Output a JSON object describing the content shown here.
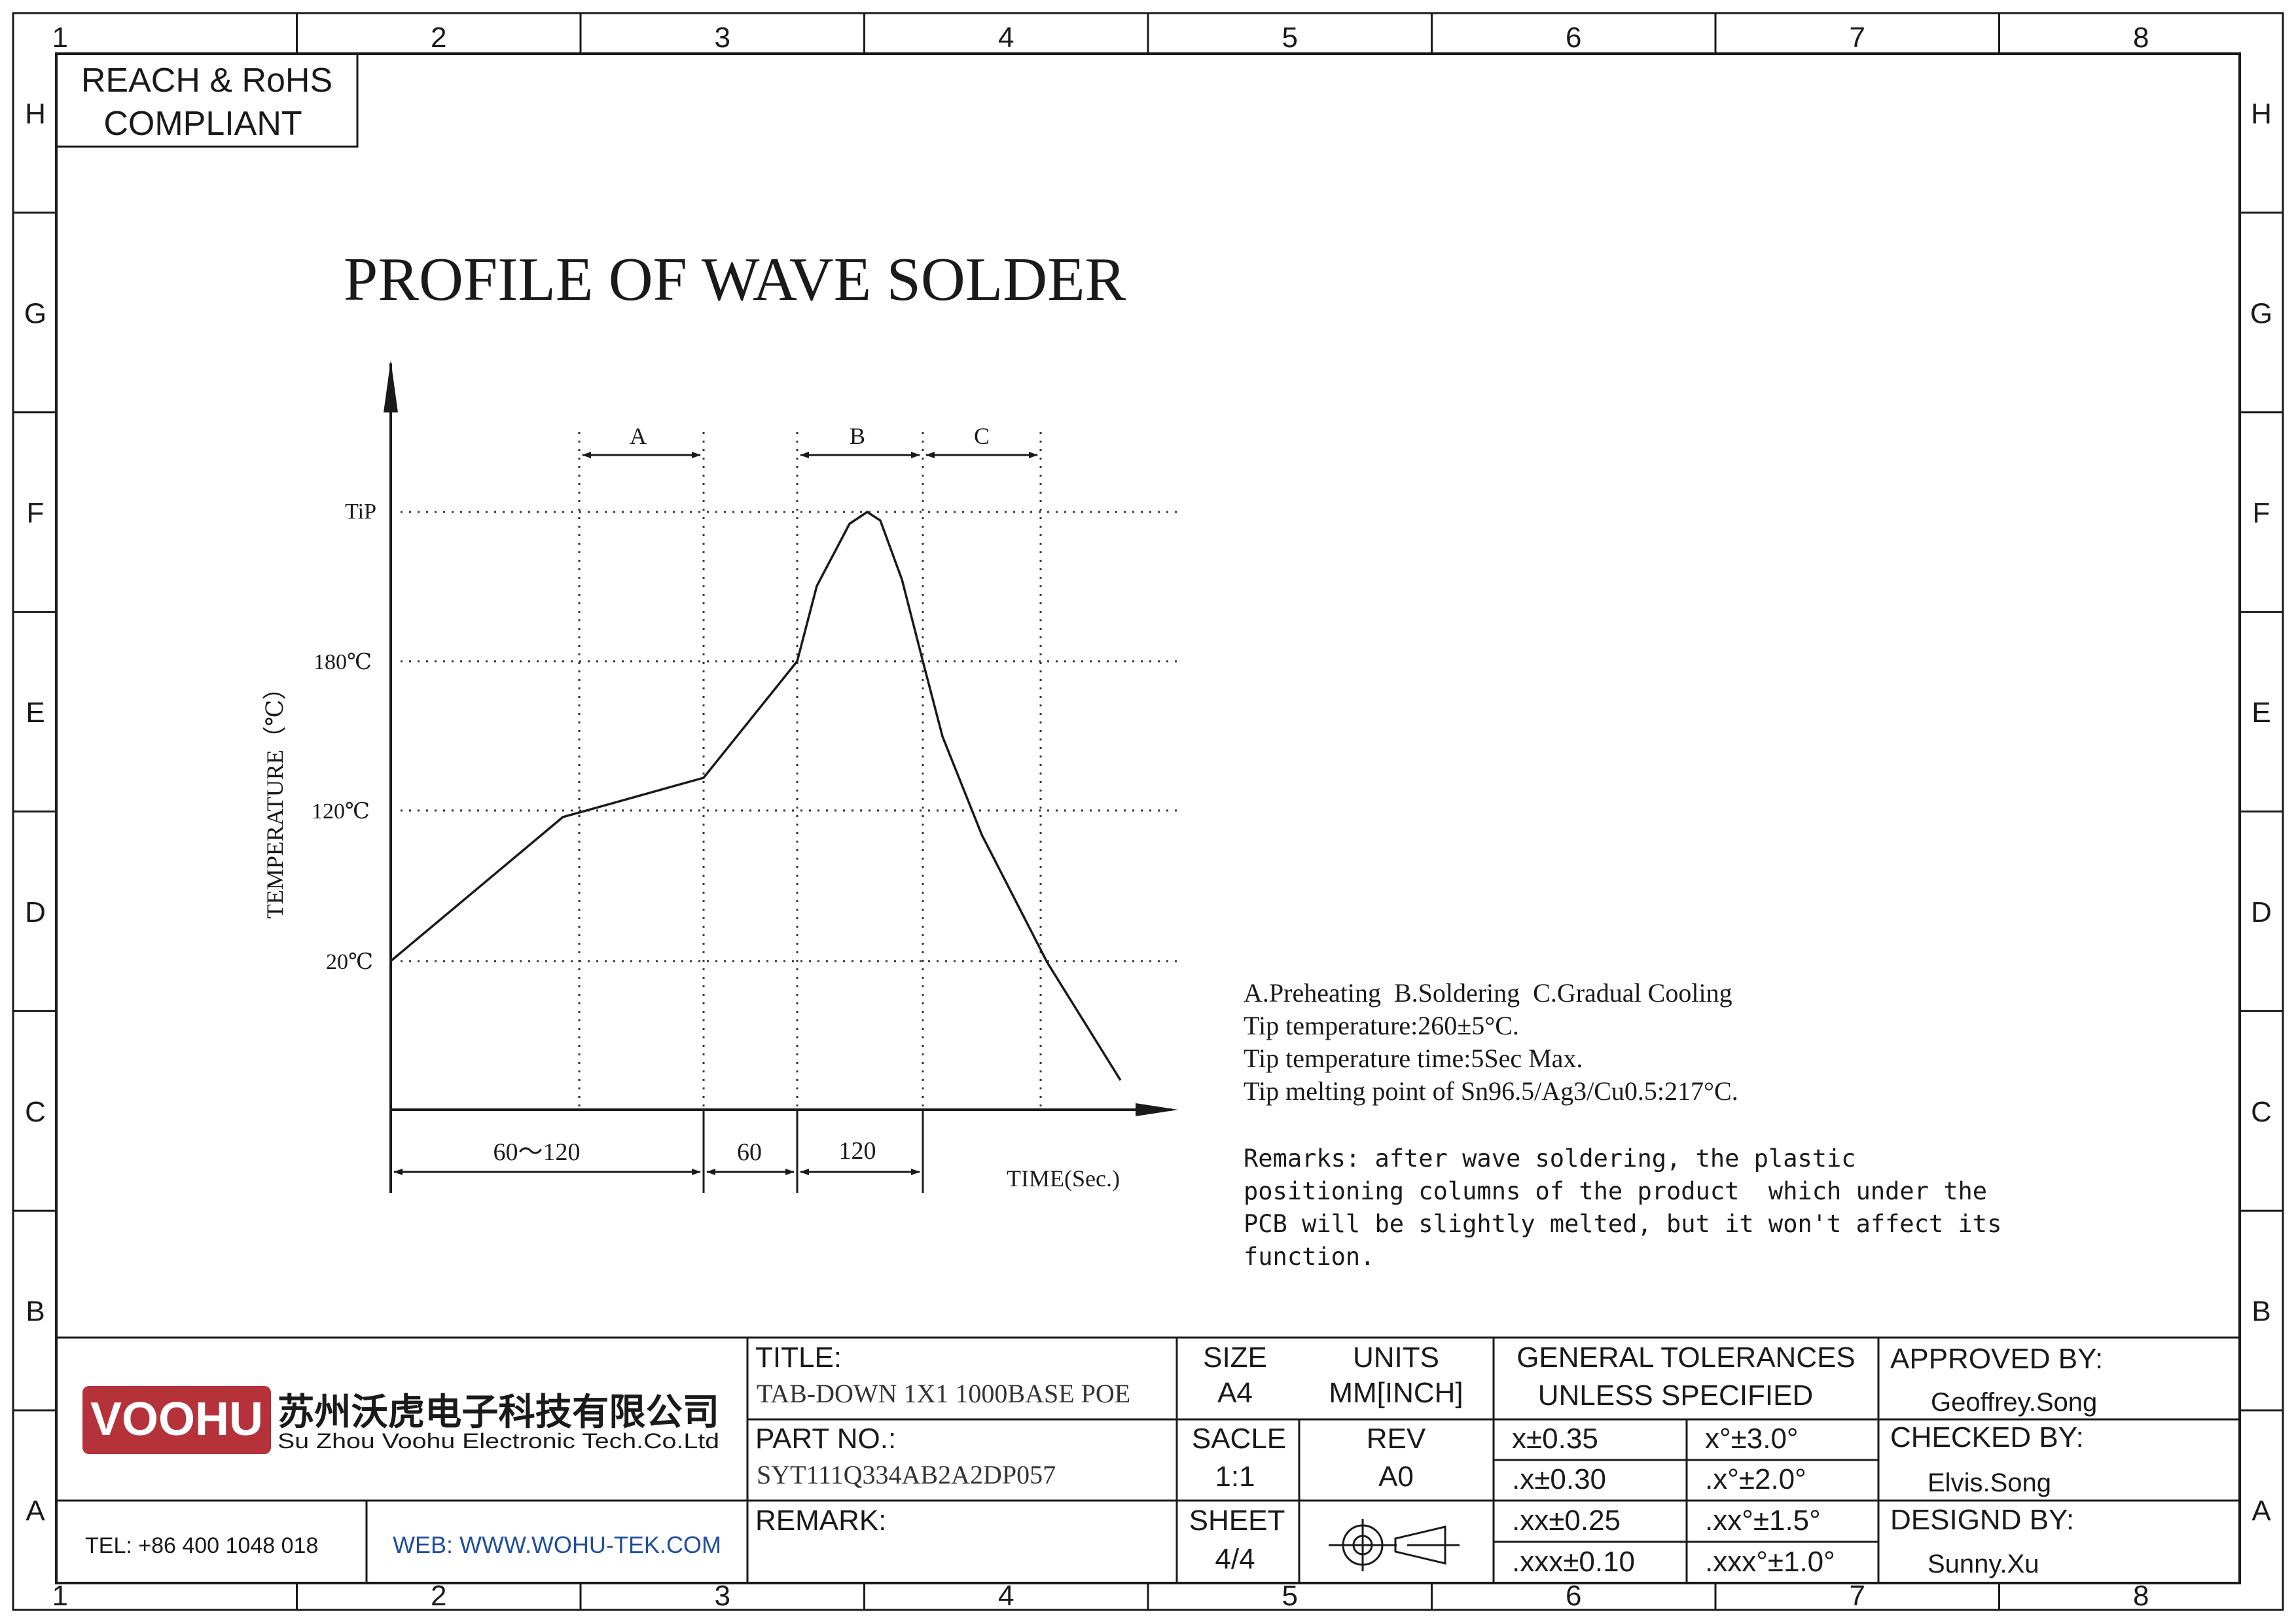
{
  "frame": {
    "columns": [
      "1",
      "2",
      "3",
      "4",
      "5",
      "6",
      "7",
      "8"
    ],
    "rows": [
      "H",
      "G",
      "F",
      "E",
      "D",
      "C",
      "B",
      "A"
    ]
  },
  "compliance": {
    "line1": "REACH & RoHS",
    "line2": "COMPLIANT"
  },
  "diagram": {
    "title": "PROFILE OF WAVE SOLDER",
    "y_axis_label": "TEMPERATURE（℃）",
    "x_axis_label": "TIME(Sec.)",
    "y_ticks": [
      "TiP",
      "180℃",
      "120℃",
      "20℃"
    ],
    "phase_labels": [
      "A",
      "B",
      "C"
    ],
    "durations": [
      "60～120",
      "60",
      "120"
    ]
  },
  "notes": {
    "lines": [
      "A.Preheating  B.Soldering  C.Gradual Cooling",
      "Tip temperature:260±5°C.",
      "Tip temperature time:5Sec Max.",
      "Tip melting point of Sn96.5/Ag3/Cu0.5:217°C."
    ],
    "remarks": [
      "Remarks: after wave soldering, the plastic",
      "positioning columns of the product  which under the",
      "PCB will be slightly melted, but it won't affect its",
      "function."
    ]
  },
  "title_block": {
    "logo_text": "VOOHU",
    "company_cn": "苏州沃虎电子科技有限公司",
    "company_en": "Su Zhou Voohu Electronic Tech.Co.Ltd",
    "tel": "TEL: +86 400 1048 018",
    "web": "WEB: WWW.WOHU-TEK.COM",
    "title_label": "TITLE:",
    "title_value": "TAB-DOWN 1X1 1000BASE POE",
    "part_label": "PART NO.:",
    "part_value": "SYT111Q334AB2A2DP057",
    "remark_label": "REMARK:",
    "size_label": "SIZE",
    "size_value": "A4",
    "units_label": "UNITS",
    "units_value": "MM[INCH]",
    "scale_label": "SACLE",
    "scale_value": "1:1",
    "rev_label": "REV",
    "rev_value": "A0",
    "sheet_label": "SHEET",
    "sheet_value": "4/4",
    "tolerances_line1": "GENERAL TOLERANCES",
    "tolerances_line2": "UNLESS SPECIFIED",
    "tolerances": [
      [
        "x±0.35",
        "x°±3.0°"
      ],
      [
        ".x±0.30",
        ".x°±2.0°"
      ],
      [
        ".xx±0.25",
        ".xx°±1.5°"
      ],
      [
        ".xxx±0.10",
        ".xxx°±1.0°"
      ]
    ],
    "approved_label": "APPROVED BY:",
    "approved_value": "Geoffrey.Song",
    "checked_label": "CHECKED BY:",
    "checked_value": "Elvis.Song",
    "designed_label": "DESIGND BY:",
    "designed_value": "Sunny.Xu"
  },
  "colors": {
    "logo_red": "#b5323a",
    "web_blue": "#1f4e9e",
    "ink": "#1a1a1a"
  }
}
